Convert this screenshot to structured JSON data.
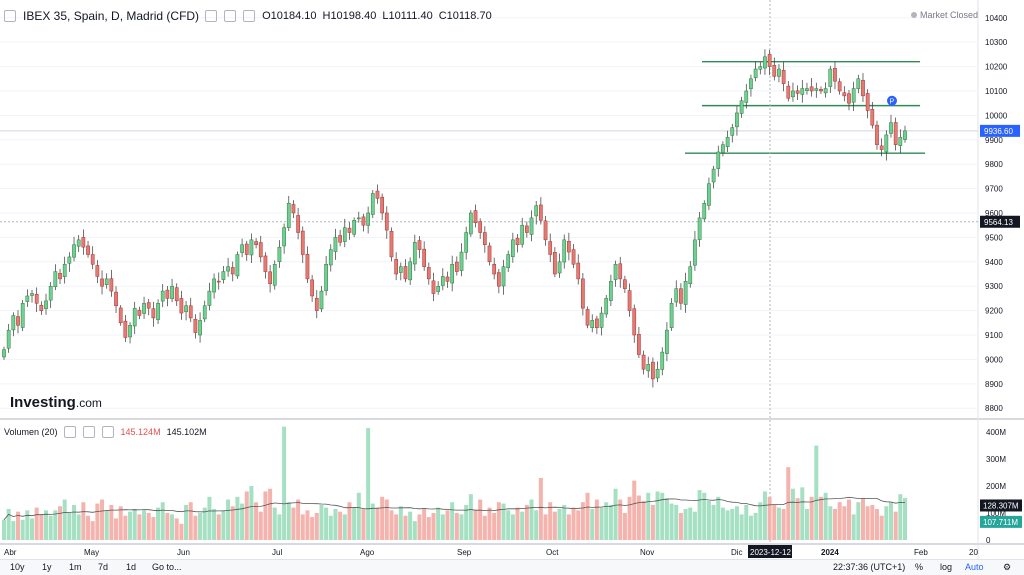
{
  "header": {
    "symbol": "IBEX 35, Spain, D, Madrid (CFD)",
    "open": "O10184.10",
    "high": "H10198.40",
    "low": "L10111.40",
    "close": "C10118.70"
  },
  "market_status": "Market Closed",
  "logo": {
    "main": "Investing",
    "suffix": ".com"
  },
  "volume_header": {
    "title": "Volumen (20)",
    "v1": "145.124M",
    "v2": "145.102M"
  },
  "bottom_bar": {
    "ranges": [
      "10y",
      "1y",
      "1m",
      "7d",
      "1d"
    ],
    "goto": "Go to...",
    "time": "22:37:36 (UTC+1)",
    "pct": "%",
    "log": "log",
    "auto": "Auto"
  },
  "colors": {
    "up": "#26a69a",
    "up_fill": "#6fcf97",
    "down": "#ef5350",
    "down_fill": "#e37b73",
    "line": "#2e8b57",
    "price_label": "#2962ff"
  },
  "chart_data": {
    "type": "candlestick",
    "title": "IBEX 35, Spain, D, Madrid (CFD)",
    "y_ticks": [
      8800,
      8900,
      9000,
      9100,
      9200,
      9300,
      9400,
      9500,
      9600,
      9700,
      9800,
      9900,
      10000,
      10100,
      10200,
      10300,
      10400
    ],
    "ylim": [
      8760,
      10440
    ],
    "x_tick_labels": [
      "Abr",
      "May",
      "Jun",
      "Jul",
      "Ago",
      "Sep",
      "Oct",
      "Nov",
      "Dic",
      "2023-12-12",
      "2024",
      "Feb",
      "20"
    ],
    "price_labels": [
      {
        "text": "9936.60",
        "value": 9936.6
      },
      {
        "text": "9564.13",
        "value": 9564.13
      }
    ],
    "volume_axis_ticks": [
      "0",
      "100M",
      "200M",
      "300M",
      "400M"
    ],
    "volume_labels": [
      "128.307M",
      "107.711M"
    ],
    "closes": [
      9040,
      9120,
      9180,
      9140,
      9230,
      9260,
      9270,
      9230,
      9200,
      9240,
      9300,
      9360,
      9330,
      9390,
      9420,
      9470,
      9490,
      9460,
      9430,
      9390,
      9340,
      9300,
      9330,
      9280,
      9220,
      9150,
      9090,
      9140,
      9210,
      9180,
      9230,
      9210,
      9170,
      9230,
      9280,
      9250,
      9300,
      9240,
      9190,
      9220,
      9170,
      9110,
      9160,
      9220,
      9280,
      9330,
      9320,
      9360,
      9380,
      9350,
      9430,
      9470,
      9430,
      9490,
      9470,
      9420,
      9360,
      9310,
      9390,
      9460,
      9540,
      9640,
      9600,
      9520,
      9430,
      9330,
      9260,
      9200,
      9280,
      9390,
      9450,
      9500,
      9480,
      9540,
      9520,
      9570,
      9580,
      9550,
      9600,
      9680,
      9660,
      9600,
      9530,
      9420,
      9350,
      9380,
      9330,
      9400,
      9480,
      9450,
      9380,
      9330,
      9270,
      9300,
      9340,
      9320,
      9390,
      9360,
      9440,
      9520,
      9600,
      9560,
      9520,
      9470,
      9400,
      9350,
      9300,
      9380,
      9430,
      9490,
      9470,
      9550,
      9520,
      9580,
      9630,
      9570,
      9490,
      9430,
      9350,
      9400,
      9490,
      9440,
      9390,
      9330,
      9210,
      9140,
      9160,
      9130,
      9190,
      9250,
      9320,
      9390,
      9330,
      9290,
      9200,
      9100,
      9020,
      8960,
      8980,
      8920,
      8960,
      9030,
      9120,
      9230,
      9290,
      9230,
      9320,
      9380,
      9490,
      9580,
      9640,
      9720,
      9780,
      9850,
      9880,
      9910,
      9950,
      10010,
      10060,
      10100,
      10150,
      10190,
      10200,
      10240,
      10200,
      10160,
      10190,
      10130,
      10070,
      10100,
      10090,
      10110,
      10110,
      10100,
      10110,
      10100,
      10110,
      10190,
      10140,
      10100,
      10080,
      10050,
      10110,
      10150,
      10080,
      10020,
      9960,
      9880,
      9860,
      9920,
      9970,
      9880,
      9910,
      9936.6
    ],
    "volumes": [
      75,
      115,
      70,
      105,
      75,
      110,
      80,
      120,
      95,
      110,
      90,
      110,
      125,
      150,
      100,
      130,
      95,
      140,
      90,
      70,
      135,
      150,
      110,
      130,
      80,
      125,
      90,
      105,
      115,
      95,
      110,
      100,
      85,
      120,
      140,
      100,
      95,
      80,
      60,
      130,
      140,
      90,
      100,
      120,
      160,
      115,
      95,
      110,
      150,
      125,
      160,
      135,
      180,
      200,
      140,
      105,
      180,
      190,
      120,
      95,
      110,
      140,
      120,
      150,
      95,
      110,
      85,
      100,
      130,
      120,
      90,
      115,
      105,
      95,
      140,
      120,
      175,
      115,
      100,
      135,
      120,
      160,
      150,
      110,
      95,
      125,
      90,
      105,
      70,
      95,
      115,
      85,
      100,
      120,
      95,
      110,
      140,
      100,
      95,
      130,
      170,
      110,
      150,
      90,
      120,
      100,
      140,
      135,
      110,
      95,
      120,
      105,
      130,
      150,
      110,
      125,
      95,
      140,
      105,
      115,
      130,
      95,
      120,
      110,
      140,
      175,
      115,
      150,
      120,
      140,
      130,
      190,
      150,
      100,
      160,
      220,
      165,
      145,
      175,
      130,
      180,
      175,
      155,
      135,
      130,
      100,
      115,
      120,
      105,
      185,
      175,
      145,
      130,
      160,
      120,
      110,
      115,
      125,
      95,
      130,
      90,
      100,
      140,
      180,
      160,
      130,
      120,
      115,
      270,
      190,
      155,
      195,
      115,
      160,
      245,
      160,
      175,
      125,
      115,
      140,
      125,
      150,
      95,
      140,
      155,
      125,
      130,
      115,
      90,
      125,
      140,
      105,
      170,
      155
    ],
    "spikes": [
      {
        "index": 60,
        "value": 420
      },
      {
        "index": 78,
        "value": 415
      },
      {
        "index": 174,
        "value": 350
      },
      {
        "index": 115,
        "value": 230
      }
    ]
  }
}
